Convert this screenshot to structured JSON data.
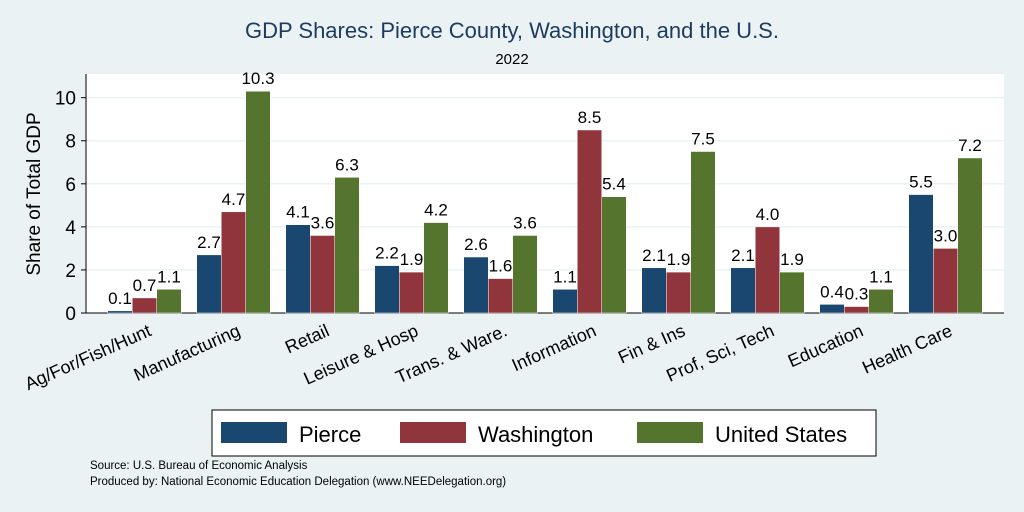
{
  "chart_data": {
    "type": "bar",
    "title": "GDP Shares: Pierce County, Washington, and the U.S.",
    "subtitle": "2022",
    "ylabel": "Share of Total GDP",
    "xlabel": "",
    "ylim": [
      0,
      11.1
    ],
    "yticks": [
      0,
      2,
      4,
      6,
      8,
      10
    ],
    "grid": true,
    "legend_position": "bottom",
    "categories": [
      "Ag/For/Fish/Hunt",
      "Manufacturing",
      "Retail",
      "Leisure & Hosp",
      "Trans. & Ware.",
      "Information",
      "Fin & Ins",
      "Prof, Sci, Tech",
      "Education",
      "Health Care"
    ],
    "series": [
      {
        "name": "Pierce",
        "color": "#1a476f",
        "values": [
          0.1,
          2.7,
          4.1,
          2.2,
          2.6,
          1.1,
          2.1,
          2.1,
          0.4,
          5.5
        ]
      },
      {
        "name": "Washington",
        "color": "#90353b",
        "values": [
          0.7,
          4.7,
          3.6,
          1.9,
          1.6,
          8.5,
          1.9,
          4.0,
          0.3,
          3.0
        ]
      },
      {
        "name": "United States",
        "color": "#55752f",
        "values": [
          1.1,
          10.3,
          6.3,
          4.2,
          3.6,
          5.4,
          7.5,
          1.9,
          1.1,
          7.2
        ]
      }
    ]
  },
  "notes": {
    "source": "Source: U.S. Bureau of Economic Analysis",
    "produced": "Produced by: National Economic Education Delegation (www.NEEDelegation.org)"
  }
}
